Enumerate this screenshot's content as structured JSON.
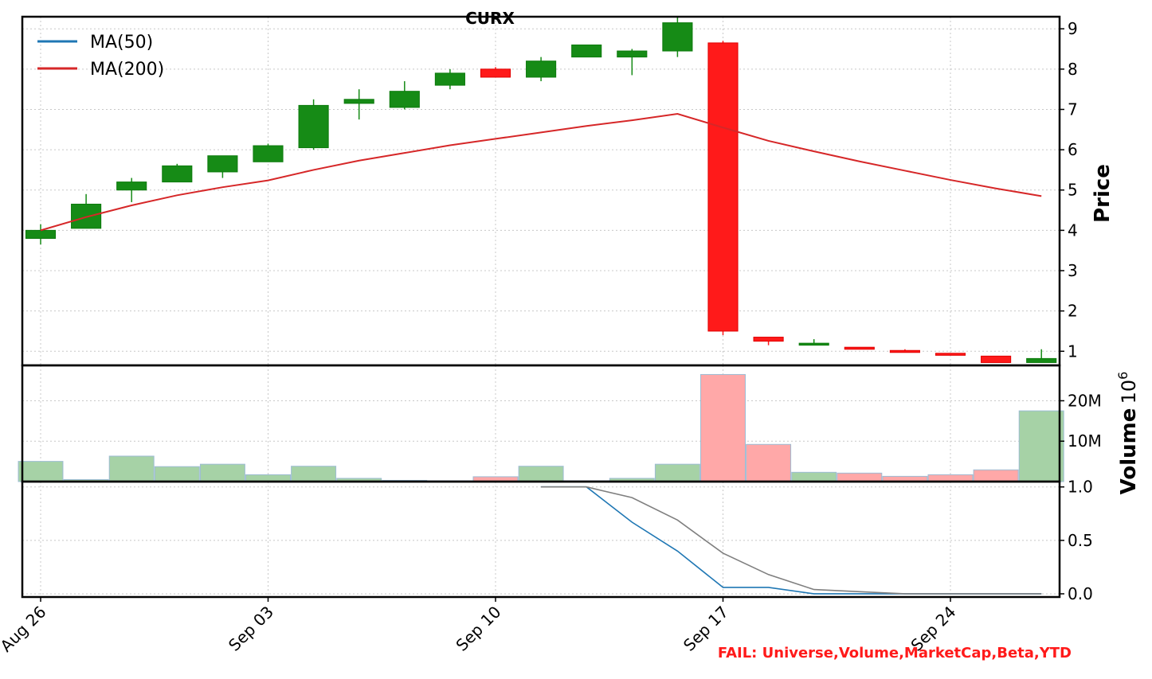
{
  "chart_data": {
    "title": "CURX",
    "type": "candlestick",
    "dates": [
      "Aug 26",
      "Aug 27",
      "Aug 28",
      "Aug 29",
      "Aug 30",
      "Sep 03",
      "Sep 04",
      "Sep 05",
      "Sep 06",
      "Sep 09",
      "Sep 10",
      "Sep 11",
      "Sep 12",
      "Sep 13",
      "Sep 16",
      "Sep 17",
      "Sep 18",
      "Sep 19",
      "Sep 20",
      "Sep 23",
      "Sep 24",
      "Sep 25",
      "Sep 26"
    ],
    "x_tick_labels": [
      "Aug 26",
      "Sep 03",
      "Sep 10",
      "Sep 17",
      "Sep 24"
    ],
    "price_panel": {
      "ylabel": "Price",
      "yticks": [
        "1",
        "2",
        "3",
        "4",
        "5",
        "6",
        "7",
        "8",
        "9"
      ],
      "ylim": [
        0.65,
        9.3
      ],
      "candles": [
        {
          "o": 3.8,
          "h": 4.15,
          "l": 3.65,
          "c": 4.0
        },
        {
          "o": 4.05,
          "h": 4.9,
          "l": 4.05,
          "c": 4.65
        },
        {
          "o": 5.0,
          "h": 5.3,
          "l": 4.7,
          "c": 5.2
        },
        {
          "o": 5.2,
          "h": 5.65,
          "l": 5.2,
          "c": 5.6
        },
        {
          "o": 5.45,
          "h": 5.85,
          "l": 5.3,
          "c": 5.85
        },
        {
          "o": 5.7,
          "h": 6.15,
          "l": 5.7,
          "c": 6.1
        },
        {
          "o": 6.05,
          "h": 7.25,
          "l": 6.0,
          "c": 7.1
        },
        {
          "o": 7.15,
          "h": 7.5,
          "l": 6.75,
          "c": 7.25
        },
        {
          "o": 7.05,
          "h": 7.7,
          "l": 7.0,
          "c": 7.45
        },
        {
          "o": 7.6,
          "h": 8.0,
          "l": 7.5,
          "c": 7.9
        },
        {
          "o": 8.0,
          "h": 8.05,
          "l": 7.8,
          "c": 7.8
        },
        {
          "o": 7.8,
          "h": 8.3,
          "l": 7.7,
          "c": 8.2
        },
        {
          "o": 8.3,
          "h": 8.6,
          "l": 8.3,
          "c": 8.6
        },
        {
          "o": 8.3,
          "h": 8.5,
          "l": 7.85,
          "c": 8.45
        },
        {
          "o": 8.45,
          "h": 9.3,
          "l": 8.3,
          "c": 9.15
        },
        {
          "o": 8.65,
          "h": 8.7,
          "l": 1.4,
          "c": 1.5
        },
        {
          "o": 1.35,
          "h": 1.35,
          "l": 1.15,
          "c": 1.25
        },
        {
          "o": 1.2,
          "h": 1.3,
          "l": 1.2,
          "c": 1.2
        },
        {
          "o": 1.1,
          "h": 1.1,
          "l": 1.05,
          "c": 1.05
        },
        {
          "o": 1.02,
          "h": 1.05,
          "l": 1.0,
          "c": 1.0
        },
        {
          "o": 0.95,
          "h": 0.95,
          "l": 0.9,
          "c": 0.9
        },
        {
          "o": 0.88,
          "h": 0.88,
          "l": 0.72,
          "c": 0.72
        },
        {
          "o": 0.72,
          "h": 1.05,
          "l": 0.72,
          "c": 0.82
        }
      ],
      "series": [
        {
          "name": "MA(50)",
          "color": "#1f77b4",
          "values": []
        },
        {
          "name": "MA(200)",
          "color": "#d62728",
          "values": [
            4.0,
            4.33,
            4.62,
            4.87,
            5.07,
            5.24,
            5.5,
            5.73,
            5.92,
            6.11,
            6.27,
            6.43,
            6.59,
            6.73,
            6.89,
            6.55,
            6.22,
            5.96,
            5.71,
            5.48,
            5.25,
            5.04,
            4.85
          ]
        }
      ],
      "legend": "top-left",
      "grid": true
    },
    "volume_panel": {
      "ylabel": "Volume",
      "multiplier": "10^6",
      "multiplier_base": "10",
      "multiplier_exp": "6",
      "yticks": [
        "10M",
        "20M"
      ],
      "ylim": [
        0,
        26
      ],
      "values": [
        5.0,
        0.5,
        6.3,
        3.7,
        4.3,
        1.7,
        3.8,
        0.8,
        0.3,
        0.2,
        1.2,
        3.8,
        0.2,
        0.8,
        4.3,
        26.5,
        9.2,
        2.3,
        2.1,
        1.3,
        1.7,
        2.9,
        17.5
      ],
      "up_color": "#a6d2a6",
      "down_color": "#ffa8a8"
    },
    "indicator_panel": {
      "yticks": [
        "0.0",
        "0.5",
        "1.0"
      ],
      "ylim": [
        -0.03,
        1.05
      ],
      "series": [
        {
          "name": "",
          "color": "#1f77b4",
          "start_index": 11,
          "values": [
            1.0,
            1.0,
            0.67,
            0.4,
            0.06,
            0.06,
            0.0,
            0.0,
            0.0,
            0.0,
            0.0,
            0.0
          ]
        },
        {
          "name": "",
          "color": "#7f7f7f",
          "start_index": 11,
          "values": [
            1.0,
            1.0,
            0.9,
            0.69,
            0.38,
            0.18,
            0.04,
            0.02,
            0.0,
            0.0,
            0.0,
            0.0
          ]
        }
      ]
    },
    "annotation": "FAIL: Universe,Volume,MarketCap,Beta,YTD",
    "colors": {
      "up": "#168b16",
      "down": "#ff1a1a",
      "grid": "#c8c8c8"
    }
  }
}
